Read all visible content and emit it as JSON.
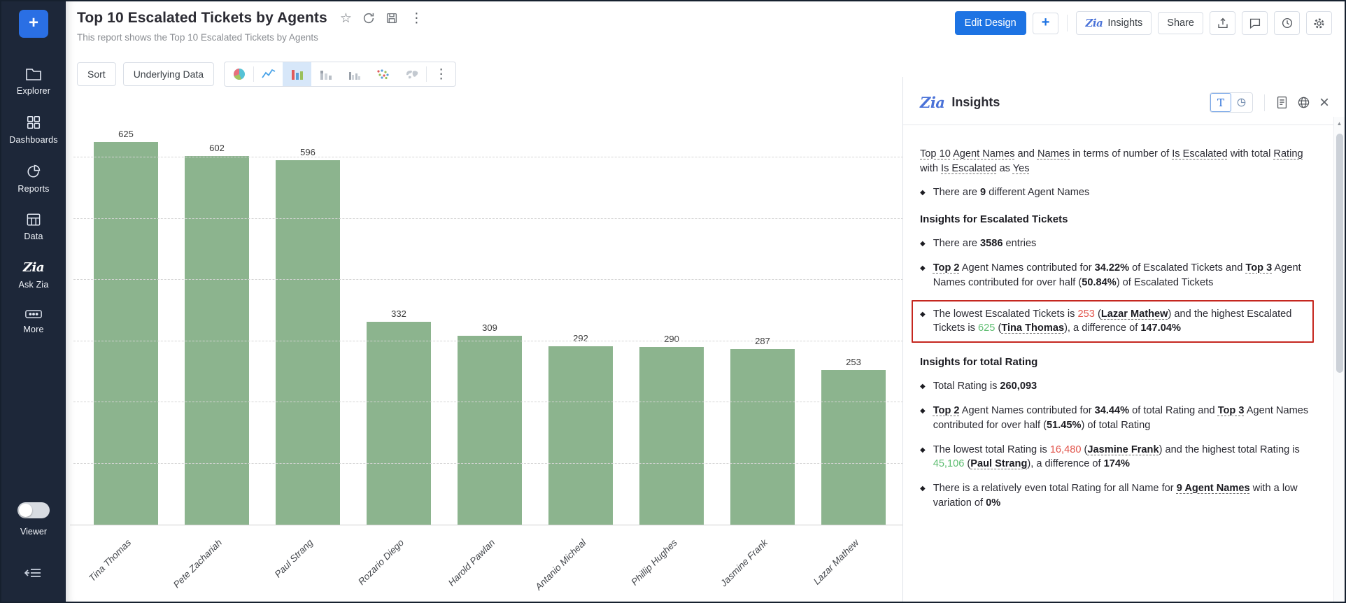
{
  "header": {
    "title": "Top 10 Escalated Tickets by Agents",
    "subtitle": "This report shows the Top 10 Escalated Tickets by Agents"
  },
  "sidebar": {
    "items": [
      {
        "label": "Explorer",
        "icon": "folder-icon"
      },
      {
        "label": "Dashboards",
        "icon": "dashboards-grid-icon"
      },
      {
        "label": "Reports",
        "icon": "reports-pie-icon"
      },
      {
        "label": "Data",
        "icon": "data-table-icon"
      },
      {
        "label": "Ask Zia",
        "icon": "zia-icon"
      },
      {
        "label": "More",
        "icon": "more-ellipsis-icon"
      }
    ],
    "viewer_label": "Viewer",
    "viewer_toggle": "off"
  },
  "toolbar": {
    "sort_label": "Sort",
    "underlying_data_label": "Underlying Data",
    "chart_types": [
      "pie-chart-icon",
      "line-chart-icon",
      "bar-chart-icon",
      "stacked-bar-icon",
      "grouped-bar-icon",
      "scatter-chart-icon",
      "map-chart-icon"
    ],
    "selected_chart_type": "bar-chart-icon"
  },
  "topbar": {
    "edit_design_label": "Edit Design",
    "insights_label": "Insights",
    "share_label": "Share"
  },
  "chart_data": {
    "type": "bar",
    "title": "Top 10 Escalated Tickets by Agents",
    "categories": [
      "Tina Thomas",
      "Pete Zachariah",
      "Paul Strang",
      "Rozario Diego",
      "Harold Pawlan",
      "Antanio Micheal",
      "Phillip Hughes",
      "Jasmine Frank",
      "Lazar Mathew"
    ],
    "values": [
      625,
      602,
      596,
      332,
      309,
      292,
      290,
      287,
      253
    ],
    "bar_color": "#8CB48E",
    "xlabel": "",
    "ylabel": "",
    "ylim": [
      0,
      686
    ],
    "gridline_step": 100,
    "grid": "horizontal-dashed",
    "value_labels": true,
    "legend": "none"
  },
  "insights_panel": {
    "title": "Insights",
    "text_view_label": "T",
    "intro_segments": [
      {
        "t": "Top 10",
        "u": 1
      },
      {
        "t": " "
      },
      {
        "t": "Agent Names",
        "u": 1
      },
      {
        "t": " and "
      },
      {
        "t": "Names",
        "u": 1
      },
      {
        "t": " in terms of number of "
      },
      {
        "t": "Is Escalated",
        "u": 1
      },
      {
        "t": " with total "
      },
      {
        "t": "Rating",
        "u": 1
      },
      {
        "t": " with "
      },
      {
        "t": "Is Escalated",
        "u": 1
      },
      {
        "t": " as "
      },
      {
        "t": "Yes",
        "u": 1
      }
    ],
    "sections": [
      {
        "heading": "",
        "bullets": [
          {
            "segments": [
              {
                "t": "There are "
              },
              {
                "t": "9",
                "b": 1
              },
              {
                "t": " different Agent Names"
              }
            ]
          }
        ]
      },
      {
        "heading": "Insights for Escalated Tickets",
        "bullets": [
          {
            "segments": [
              {
                "t": "There are "
              },
              {
                "t": "3586",
                "b": 1
              },
              {
                "t": " entries"
              }
            ]
          },
          {
            "segments": [
              {
                "t": "Top 2",
                "b": 1,
                "u": 1
              },
              {
                "t": " Agent Names contributed for "
              },
              {
                "t": "34.22%",
                "b": 1
              },
              {
                "t": " of Escalated Tickets and "
              },
              {
                "t": "Top 3",
                "b": 1,
                "u": 1
              },
              {
                "t": " Agent Names contributed for over half ("
              },
              {
                "t": "50.84%",
                "b": 1
              },
              {
                "t": ") of Escalated Tickets"
              }
            ]
          },
          {
            "highlight": true,
            "segments": [
              {
                "t": "The lowest Escalated Tickets is "
              },
              {
                "t": "253",
                "c": "red"
              },
              {
                "t": " ("
              },
              {
                "t": "Lazar Mathew",
                "b": 1,
                "u": 1
              },
              {
                "t": ") and the highest Escalated Tickets is "
              },
              {
                "t": "625",
                "c": "green"
              },
              {
                "t": " ("
              },
              {
                "t": "Tina Thomas",
                "b": 1,
                "u": 1
              },
              {
                "t": "), a difference of "
              },
              {
                "t": "147.04%",
                "b": 1
              }
            ]
          }
        ]
      },
      {
        "heading": "Insights for total Rating",
        "bullets": [
          {
            "segments": [
              {
                "t": "Total Rating is "
              },
              {
                "t": "260,093",
                "b": 1
              }
            ]
          },
          {
            "segments": [
              {
                "t": "Top 2",
                "b": 1,
                "u": 1
              },
              {
                "t": " Agent Names contributed for "
              },
              {
                "t": "34.44%",
                "b": 1
              },
              {
                "t": " of total Rating and "
              },
              {
                "t": "Top 3",
                "b": 1,
                "u": 1
              },
              {
                "t": " Agent Names contributed for over half ("
              },
              {
                "t": "51.45%",
                "b": 1
              },
              {
                "t": ") of total Rating"
              }
            ]
          },
          {
            "segments": [
              {
                "t": "The lowest total Rating is "
              },
              {
                "t": "16,480",
                "c": "red"
              },
              {
                "t": " ("
              },
              {
                "t": "Jasmine Frank",
                "b": 1,
                "u": 1
              },
              {
                "t": ") and the highest total Rating is "
              },
              {
                "t": "45,106",
                "c": "green"
              },
              {
                "t": " ("
              },
              {
                "t": "Paul Strang",
                "b": 1,
                "u": 1
              },
              {
                "t": "), a difference of "
              },
              {
                "t": "174%",
                "b": 1
              }
            ]
          },
          {
            "segments": [
              {
                "t": "There is a relatively even total Rating for all Name for "
              },
              {
                "t": "9 Agent Names",
                "b": 1,
                "u": 1
              },
              {
                "t": " with a low variation of "
              },
              {
                "t": "0%",
                "b": 1
              }
            ]
          }
        ]
      }
    ]
  },
  "colors": {
    "accent_blue": "#1D73E3",
    "bar_green": "#8CB48E",
    "lowest_value_red": "#E2544B",
    "highest_value_green": "#5FBE72",
    "highlight_box_red": "#C5271F",
    "sidebar_bg": "#1D2739"
  }
}
